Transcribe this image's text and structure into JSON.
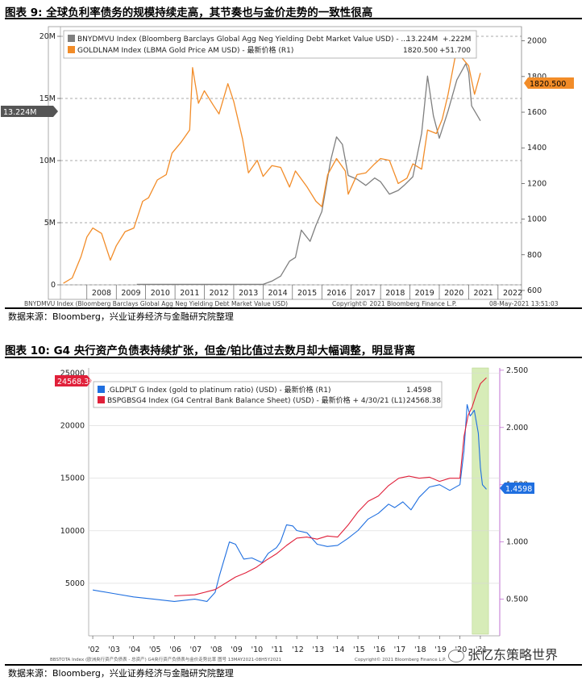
{
  "figure1": {
    "title": "图表 9:  全球负利率债务的规模持续走高，其节奏也与金价走势的一致性很高",
    "source": "数据来源：Bloomberg，兴业证券经济与金融研究院整理",
    "footer_left": "BNYDMVU Index (Bloomberg Barclays Global Agg Neg Yielding Debt Market Value USD)",
    "footer_mid": "Copyright© 2021 Bloomberg Finance L.P.",
    "footer_right": "08-May-2021 13:51:03",
    "legend": [
      {
        "label": "BNYDMVU Index (Bloomberg Barclays Global Agg Neg Yielding Debt Market Value USD) - ...",
        "value": "13.224M",
        "change": "+.222M"
      },
      {
        "label": "GOLDLNAM Index (LBMA Gold Price AM USD) - 最新价格 (R1)",
        "value": "1820.500",
        "change": "+51.700"
      }
    ],
    "left_tag": "13.224M",
    "right_tag": "1820.500"
  },
  "figure2": {
    "title": "图表 10:  G4 央行资产负债表持续扩张，但金/铂比值过去数月却大幅调整，明显背离",
    "source": "数据来源：Bloomberg，兴业证券经济与金融研究院整理",
    "footer_left": "BBSTOTA Index (欧洲央行资产负债表 - 总资产) G4央行资产负债表与金价走势比率  图号  13MAY2021-08H5Y2021",
    "footer_right": "Copyright© 2021 Bloomberg Finance L.P.",
    "legend": [
      {
        "label": ".GLDPLT G Index (gold to platinum ratio) (USD) - 最新价格 (R1)",
        "value": "1.4598"
      },
      {
        "label": "BSPGBSG4 Index (G4 Central Bank Balance Sheet) (USD) - 最新价格 + 4/30/21 (L1)",
        "value": "24568.38"
      }
    ],
    "left_tag": "24568.38",
    "right_tag": "1.4598"
  },
  "watermark": "张忆东策略世界",
  "chart_data": [
    {
      "type": "line",
      "x_ticks": [
        "2008",
        "2009",
        "2010",
        "2011",
        "2012",
        "2013",
        "2014",
        "2015",
        "2016",
        "2017",
        "2018",
        "2019",
        "2020",
        "2021",
        "2022"
      ],
      "y_left_ticks": [
        "0",
        "5M",
        "10M",
        "15M",
        "20M"
      ],
      "y_left_range": [
        0,
        20
      ],
      "y_right_ticks": [
        "600",
        "800",
        "1000",
        "1200",
        "1400",
        "1600",
        "1800",
        "2000"
      ],
      "y_right_range": [
        550,
        2080
      ],
      "x_range": [
        2007.1,
        2022.8
      ],
      "colors": {
        "BNYDMVU": "#7f7f7f",
        "GOLDLNAM": "#f28c28"
      },
      "series": [
        {
          "name": "BNYDMVU",
          "axis": "left",
          "points": [
            [
              2009.7,
              0.04
            ],
            [
              2014.0,
              0.04
            ],
            [
              2014.3,
              0.3
            ],
            [
              2014.6,
              0.7
            ],
            [
              2014.9,
              1.9
            ],
            [
              2015.1,
              2.2
            ],
            [
              2015.3,
              4.4
            ],
            [
              2015.6,
              3.5
            ],
            [
              2015.8,
              4.8
            ],
            [
              2016.0,
              5.9
            ],
            [
              2016.3,
              10.0
            ],
            [
              2016.5,
              11.9
            ],
            [
              2016.7,
              11.3
            ],
            [
              2016.9,
              8.8
            ],
            [
              2017.2,
              8.5
            ],
            [
              2017.5,
              8.0
            ],
            [
              2017.8,
              8.6
            ],
            [
              2018.0,
              8.3
            ],
            [
              2018.3,
              7.3
            ],
            [
              2018.6,
              7.6
            ],
            [
              2018.8,
              8.0
            ],
            [
              2019.1,
              8.7
            ],
            [
              2019.4,
              12.2
            ],
            [
              2019.6,
              16.8
            ],
            [
              2019.8,
              13.6
            ],
            [
              2020.0,
              11.8
            ],
            [
              2020.3,
              14.0
            ],
            [
              2020.6,
              16.5
            ],
            [
              2020.9,
              17.8
            ],
            [
              2021.0,
              17.1
            ],
            [
              2021.1,
              14.4
            ],
            [
              2021.4,
              13.2
            ]
          ]
        },
        {
          "name": "GOLDLNAM",
          "axis": "right",
          "points": [
            [
              2007.2,
              640
            ],
            [
              2007.5,
              670
            ],
            [
              2007.8,
              790
            ],
            [
              2008.0,
              900
            ],
            [
              2008.2,
              950
            ],
            [
              2008.5,
              920
            ],
            [
              2008.8,
              770
            ],
            [
              2009.0,
              850
            ],
            [
              2009.3,
              930
            ],
            [
              2009.6,
              950
            ],
            [
              2009.9,
              1100
            ],
            [
              2010.1,
              1120
            ],
            [
              2010.4,
              1220
            ],
            [
              2010.7,
              1250
            ],
            [
              2010.9,
              1370
            ],
            [
              2011.2,
              1430
            ],
            [
              2011.5,
              1500
            ],
            [
              2011.6,
              1850
            ],
            [
              2011.8,
              1650
            ],
            [
              2012.0,
              1720
            ],
            [
              2012.3,
              1640
            ],
            [
              2012.5,
              1590
            ],
            [
              2012.8,
              1760
            ],
            [
              2013.0,
              1660
            ],
            [
              2013.3,
              1450
            ],
            [
              2013.5,
              1260
            ],
            [
              2013.8,
              1330
            ],
            [
              2014.0,
              1240
            ],
            [
              2014.3,
              1300
            ],
            [
              2014.6,
              1290
            ],
            [
              2014.9,
              1180
            ],
            [
              2015.1,
              1270
            ],
            [
              2015.5,
              1180
            ],
            [
              2015.8,
              1100
            ],
            [
              2016.0,
              1070
            ],
            [
              2016.2,
              1250
            ],
            [
              2016.5,
              1340
            ],
            [
              2016.8,
              1270
            ],
            [
              2016.9,
              1140
            ],
            [
              2017.2,
              1250
            ],
            [
              2017.5,
              1260
            ],
            [
              2017.8,
              1310
            ],
            [
              2018.0,
              1340
            ],
            [
              2018.3,
              1330
            ],
            [
              2018.6,
              1200
            ],
            [
              2018.9,
              1230
            ],
            [
              2019.1,
              1310
            ],
            [
              2019.4,
              1280
            ],
            [
              2019.6,
              1500
            ],
            [
              2019.9,
              1480
            ],
            [
              2020.1,
              1560
            ],
            [
              2020.3,
              1700
            ],
            [
              2020.6,
              1960
            ],
            [
              2020.8,
              1900
            ],
            [
              2021.0,
              1860
            ],
            [
              2021.2,
              1700
            ],
            [
              2021.4,
              1820
            ]
          ]
        }
      ]
    },
    {
      "type": "line",
      "x_ticks": [
        "'02",
        "'03",
        "'04",
        "'05",
        "'06",
        "'07",
        "'08",
        "'09",
        "'10",
        "'11",
        "'12",
        "'13",
        "'14",
        "'15",
        "'16",
        "'17",
        "'18",
        "'19",
        "'20",
        "'21"
      ],
      "y_left_ticks": [
        "5000",
        "10000",
        "15000",
        "20000",
        "25000"
      ],
      "y_left_range": [
        0,
        25500
      ],
      "y_right_ticks": [
        "0.500",
        "1.000",
        "1.500",
        "2.000",
        "2.500"
      ],
      "y_right_range": [
        0.18,
        2.52
      ],
      "x_range": [
        2001.8,
        2021.95
      ],
      "colors": {
        "GLDPLT": "#1f6fe0",
        "BSPGBSG4": "#e0203a",
        "highlight": "#c9e6a0"
      },
      "highlight_range": [
        2020.6,
        2021.4
      ],
      "series": [
        {
          "name": ".GLDPLT G",
          "axis": "right",
          "points": [
            [
              2002.0,
              0.58
            ],
            [
              2003.0,
              0.55
            ],
            [
              2004.0,
              0.52
            ],
            [
              2005.0,
              0.5
            ],
            [
              2006.0,
              0.48
            ],
            [
              2007.0,
              0.5
            ],
            [
              2007.6,
              0.48
            ],
            [
              2008.0,
              0.56
            ],
            [
              2008.2,
              0.7
            ],
            [
              2008.4,
              0.82
            ],
            [
              2008.7,
              1.0
            ],
            [
              2009.0,
              0.98
            ],
            [
              2009.4,
              0.85
            ],
            [
              2009.8,
              0.86
            ],
            [
              2010.3,
              0.82
            ],
            [
              2010.6,
              0.9
            ],
            [
              2011.0,
              0.95
            ],
            [
              2011.2,
              1.0
            ],
            [
              2011.5,
              1.15
            ],
            [
              2011.8,
              1.14
            ],
            [
              2012.0,
              1.1
            ],
            [
              2012.5,
              1.08
            ],
            [
              2013.0,
              0.98
            ],
            [
              2013.5,
              0.96
            ],
            [
              2014.0,
              0.97
            ],
            [
              2014.5,
              1.03
            ],
            [
              2015.0,
              1.1
            ],
            [
              2015.5,
              1.2
            ],
            [
              2016.0,
              1.25
            ],
            [
              2016.5,
              1.33
            ],
            [
              2016.8,
              1.3
            ],
            [
              2017.2,
              1.35
            ],
            [
              2017.6,
              1.28
            ],
            [
              2018.0,
              1.39
            ],
            [
              2018.5,
              1.48
            ],
            [
              2019.0,
              1.5
            ],
            [
              2019.5,
              1.45
            ],
            [
              2020.0,
              1.5
            ],
            [
              2020.2,
              1.8
            ],
            [
              2020.35,
              2.2
            ],
            [
              2020.5,
              2.1
            ],
            [
              2020.7,
              2.15
            ],
            [
              2020.9,
              1.95
            ],
            [
              2021.0,
              1.65
            ],
            [
              2021.1,
              1.5
            ],
            [
              2021.3,
              1.46
            ]
          ]
        },
        {
          "name": "BSPGBSG4",
          "axis": "left",
          "points": [
            [
              2006.0,
              3800
            ],
            [
              2007.0,
              3900
            ],
            [
              2007.6,
              4200
            ],
            [
              2008.0,
              4400
            ],
            [
              2008.5,
              5000
            ],
            [
              2009.0,
              5600
            ],
            [
              2009.5,
              6000
            ],
            [
              2010.0,
              6500
            ],
            [
              2010.5,
              7200
            ],
            [
              2011.0,
              7800
            ],
            [
              2011.5,
              8600
            ],
            [
              2012.0,
              9300
            ],
            [
              2012.5,
              9400
            ],
            [
              2013.0,
              9200
            ],
            [
              2013.5,
              9500
            ],
            [
              2014.0,
              9400
            ],
            [
              2014.5,
              10500
            ],
            [
              2015.0,
              11800
            ],
            [
              2015.5,
              12800
            ],
            [
              2016.0,
              13300
            ],
            [
              2016.5,
              14300
            ],
            [
              2017.0,
              15000
            ],
            [
              2017.5,
              15200
            ],
            [
              2018.0,
              15000
            ],
            [
              2018.5,
              15100
            ],
            [
              2019.0,
              14700
            ],
            [
              2019.5,
              15000
            ],
            [
              2020.0,
              15000
            ],
            [
              2020.2,
              19000
            ],
            [
              2020.4,
              21000
            ],
            [
              2020.6,
              21800
            ],
            [
              2020.8,
              23000
            ],
            [
              2021.0,
              24000
            ],
            [
              2021.3,
              24568
            ]
          ]
        }
      ]
    }
  ]
}
